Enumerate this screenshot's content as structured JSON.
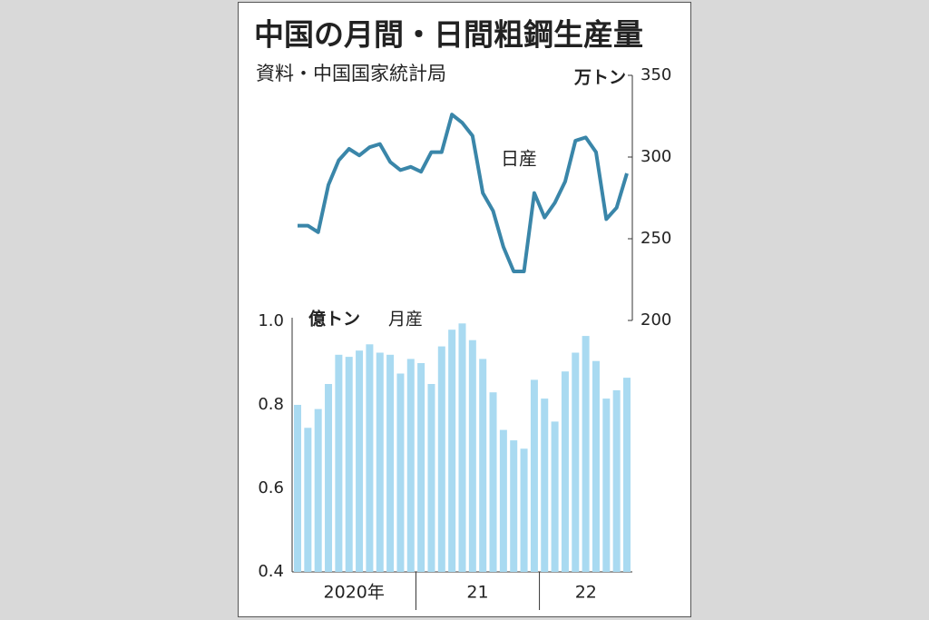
{
  "chart_data": {
    "type": "bar_line",
    "title": "中国の月間・日間粗鋼生産量",
    "subtitle": "資料・中国国家統計局",
    "y_unit": "億トン",
    "y2_unit": "万トン",
    "categories": [
      null,
      null,
      null,
      null,
      null,
      null,
      null,
      null,
      null,
      null,
      null,
      null,
      null,
      null,
      null,
      null,
      null,
      null,
      null,
      null,
      null,
      null,
      null,
      null,
      null,
      null,
      null,
      null,
      null,
      null,
      null,
      null,
      null
    ],
    "x_groups": [
      {
        "label": "2020年",
        "months": 12
      },
      {
        "label": "21",
        "months": 12
      },
      {
        "label": "22",
        "months": 9
      }
    ],
    "ylim": [
      0.4,
      1.0
    ],
    "yticks": [
      0.4,
      0.6,
      0.8,
      {
        "value": 1.0,
        "label": "1.0"
      }
    ],
    "y2lim": [
      200,
      350
    ],
    "y2ticks": [
      200,
      250,
      300,
      350
    ],
    "series": [
      {
        "name": "月産",
        "type": "bar",
        "color": "#a9daf1",
        "values": [
          0.8,
          0.745,
          0.79,
          0.85,
          0.92,
          0.915,
          0.93,
          0.945,
          0.925,
          0.92,
          0.875,
          0.91,
          0.9,
          0.85,
          0.94,
          0.98,
          0.995,
          0.955,
          0.91,
          0.83,
          0.74,
          0.715,
          0.695,
          0.86,
          0.815,
          0.76,
          0.88,
          0.925,
          0.965,
          0.905,
          0.815,
          0.835,
          0.865
        ]
      },
      {
        "name": "日産",
        "type": "line",
        "axis": "y2",
        "color": "#3a86a9",
        "values": [
          258,
          258,
          254,
          283,
          298,
          305,
          301,
          306,
          308,
          297,
          292,
          294,
          291,
          303,
          303,
          326,
          321,
          313,
          278,
          267,
          245,
          230,
          230,
          278,
          263,
          272,
          285,
          310,
          312,
          303,
          262,
          269,
          290
        ]
      }
    ]
  }
}
